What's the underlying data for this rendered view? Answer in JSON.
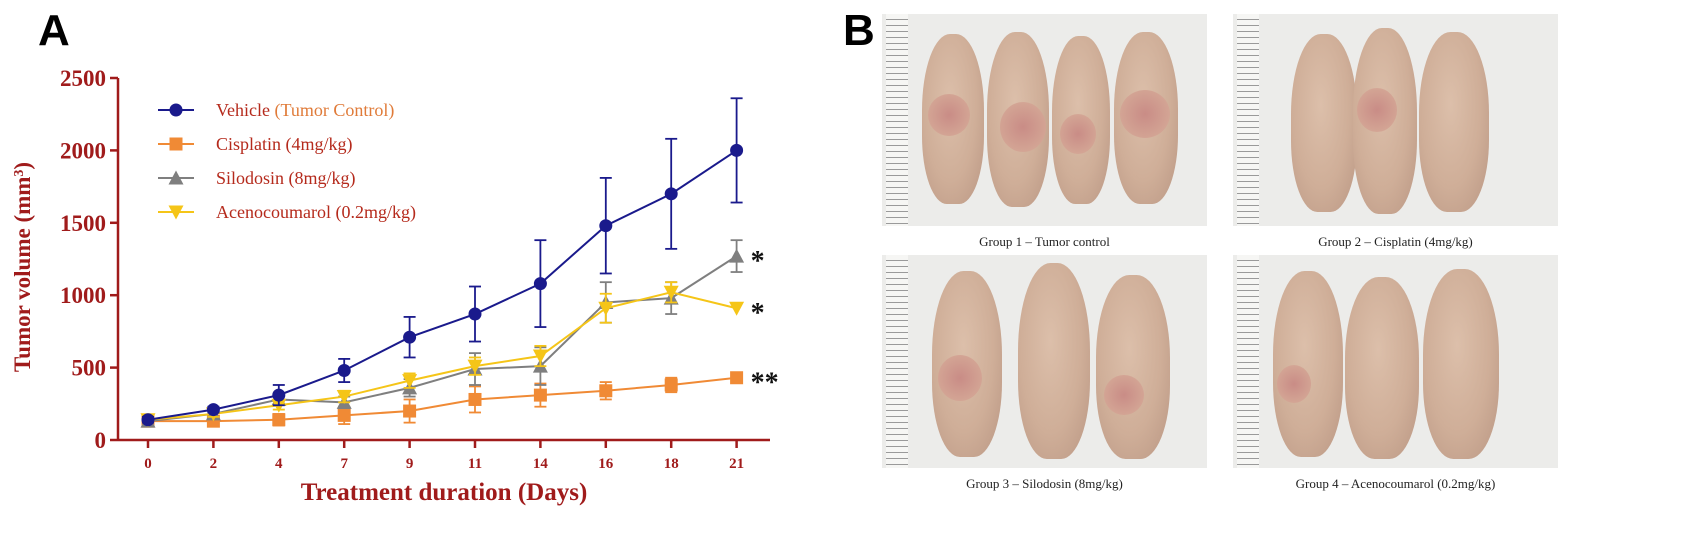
{
  "panels": {
    "a_letter": "A",
    "b_letter": "B"
  },
  "chart_data": {
    "type": "line",
    "ylabel_main": "Tumor volume (mm",
    "ylabel_sup": "3",
    "ylabel_close": ")",
    "xlabel": "Treatment duration (Days)",
    "x_tick_labels": [
      "0",
      "2",
      "4",
      "7",
      "9",
      "11",
      "14",
      "16",
      "18",
      "21"
    ],
    "y_ticks": [
      0,
      500,
      1000,
      1500,
      2000,
      2500
    ],
    "ylim": [
      0,
      2500
    ],
    "series": [
      {
        "key": "vehicle",
        "name": "Vehicle",
        "name_suffix": "(Tumor Control)",
        "marker": "circle",
        "color": "#1a1a8c",
        "suffix_color": "#e07b39",
        "values": [
          140,
          210,
          310,
          480,
          710,
          870,
          1080,
          1480,
          1700,
          2000
        ],
        "errors": [
          20,
          20,
          70,
          80,
          140,
          190,
          300,
          330,
          380,
          360
        ]
      },
      {
        "key": "cisplatin",
        "name": "Cisplatin (4mg/kg)",
        "marker": "square",
        "color": "#f08a35",
        "values": [
          130,
          130,
          140,
          170,
          200,
          280,
          310,
          340,
          380,
          430
        ],
        "errors": [
          10,
          20,
          40,
          60,
          80,
          90,
          80,
          60,
          50,
          20
        ]
      },
      {
        "key": "silodosin",
        "name": "Silodosin (8mg/kg)",
        "marker": "triangle-up",
        "color": "#7f7f7f",
        "values": [
          130,
          180,
          280,
          260,
          360,
          490,
          510,
          950,
          980,
          1270
        ],
        "errors": [
          10,
          20,
          30,
          40,
          60,
          110,
          130,
          140,
          110,
          110
        ]
      },
      {
        "key": "acenocoumarol",
        "name": "Acenocoumarol (0.2mg/kg)",
        "marker": "triangle-down",
        "color": "#f5c518",
        "values": [
          140,
          180,
          240,
          300,
          410,
          510,
          580,
          910,
          1020,
          910
        ],
        "errors": [
          10,
          20,
          30,
          40,
          50,
          60,
          70,
          100,
          70,
          0
        ]
      }
    ],
    "annotations": [
      "*",
      "*",
      "**"
    ],
    "axis_color": "#a01b1b",
    "grid": false,
    "legend_position": "top-left"
  },
  "photos": {
    "captions": [
      "Group 1 – Tumor control",
      "Group 2 – Cisplatin (4mg/kg)",
      "Group 3 – Silodosin (8mg/kg)",
      "Group 4 – Acenocoumarol (0.2mg/kg)"
    ]
  }
}
